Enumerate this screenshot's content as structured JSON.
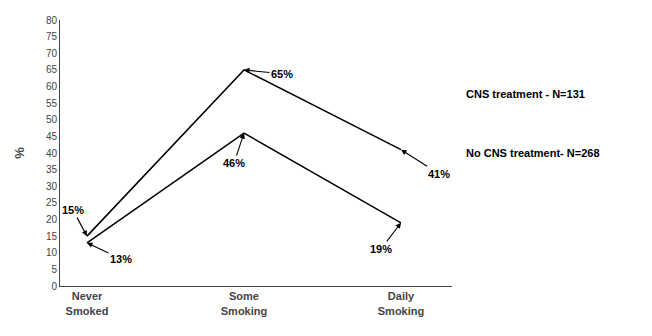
{
  "chart_data": {
    "type": "line",
    "categories": [
      "Never\nSmoked",
      "Some\nSmoking",
      "Daily\nSmoking"
    ],
    "series": [
      {
        "name": "CNS treatment - N=131",
        "color": "#000000",
        "values": [
          15,
          65,
          41
        ],
        "value_labels": [
          "15%",
          "65%",
          "41%"
        ]
      },
      {
        "name": "No CNS treatment- N=268",
        "color": "#000000",
        "values": [
          13,
          46,
          19
        ],
        "value_labels": [
          "13%",
          "46%",
          "19%"
        ]
      }
    ],
    "ylabel": "%",
    "ylim": [
      0,
      80
    ],
    "yticks": [
      0,
      5,
      10,
      15,
      20,
      25,
      30,
      35,
      40,
      45,
      50,
      55,
      60,
      65,
      70,
      75,
      80
    ],
    "data_labels": true,
    "grid": false
  }
}
